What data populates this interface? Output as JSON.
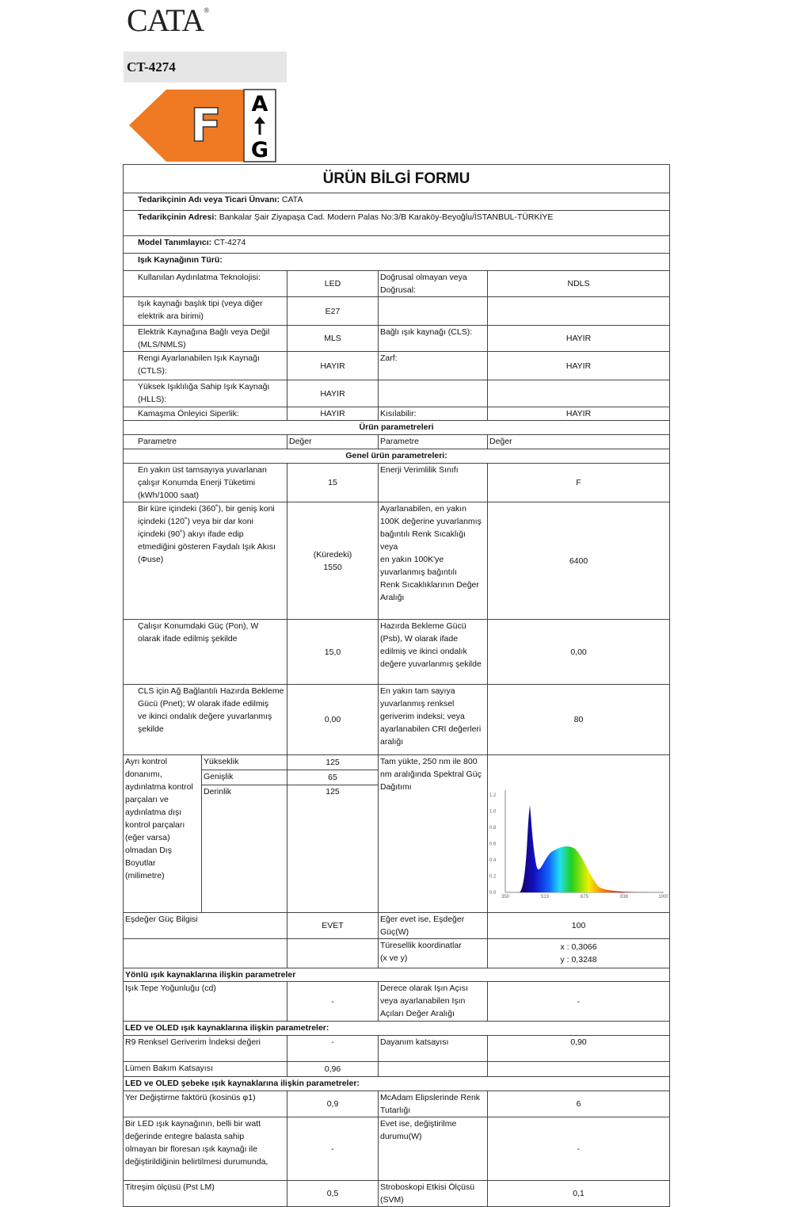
{
  "brand": {
    "logo": "CATA",
    "registered": "®"
  },
  "model_banner": "CT-4274",
  "energy_label": {
    "class": "F",
    "scale_top": "A",
    "scale_bottom": "G",
    "arrow": "arrow-up-icon",
    "color": "#f07a24"
  },
  "form": {
    "title": "ÜRÜN BİLGİ FORMU",
    "supplier_label": "Tedarikçinin Adı veya Ticari Ünvanı:",
    "supplier": "CATA",
    "address_label": "Tedarikçinin Adresi:",
    "address": "Bankalar Şair Ziyapaşa Cad. Modern Palas No:3/B Karaköy-Beyoğlu/İSTANBUL-TÜRKİYE",
    "model_label": "Model Tanımlayıcı:",
    "model": "CT-4274",
    "source_type": "Işık Kaynağının Türü:",
    "tech_label": "Kullanılan Aydınlatma Teknolojisi:",
    "tech": "LED",
    "directional_label": "Doğrusal olmayan veya\nDoğrusal:",
    "directional": "NDLS",
    "cap_label": "Işık kaynağı başlık tipi (veya diğer\nelektrik ara birimi)",
    "cap": "E27",
    "mains_label": "Elektrik Kaynağına Bağlı veya Değil\n(MLS/NMLS)",
    "mains": "MLS",
    "cls_label": "Bağlı ışık kaynağı (CLS):",
    "cls": "HAYIR",
    "ctls_label": "Rengi Ayarlanabilen Işık Kaynağı\n(CTLS):",
    "ctls": "HAYIR",
    "envelope_label": "Zarf:",
    "envelope": "HAYIR",
    "hlls_label": "Yüksek Işıklılığa Sahip Işık Kaynağı\n(HLLS):",
    "hlls": "HAYIR",
    "glare_label": "Kamaşma Önleyici Siperlik:",
    "glare": "HAYIR",
    "dimmable_label": "Kısılabilir:",
    "dimmable": "HAYIR",
    "product_params": "Ürün parametreleri",
    "col_param": "Parametre",
    "col_value": "Değer",
    "general_params": "Genel ürün parametreleri:",
    "energy_cons_label": "En yakın üst tamsayıya yuvarlanan\nçalışır Konumda Enerji Tüketimi\n(kWh/1000 saat)",
    "energy_cons": "15",
    "eff_class_label": "Enerji Verimlilik Sınıfı",
    "eff_class": "F",
    "flux_label": "Bir küre içindeki (360˚), bir geniş koni\niçindeki (120˚) veya bir dar koni\niçindeki (90˚) akıyı ifade edip\netmediğini gösteren Faydalı Işık Akısı\n(Φuse)",
    "flux": "(Küredeki)\n1550",
    "cct_label": "Ayarlanabilen, en yakın\n100K değerine yuvarlanmış\nbağıntılı Renk Sıcaklığı veya\nen yakın 100K'ye\nyuvarlanmış bağıntılı\nRenk Sıcaklıklarının Değer\nAralığı",
    "cct": "6400",
    "pon_label": "Çalışır Konumdaki Güç (Pon), W\nolarak ifade edilmiş şekilde",
    "pon": "15,0",
    "psb_label": "Hazırda Bekleme Gücü\n(Psb), W olarak ifade\nedilmiş ve ikinci ondalık\ndeğere yuvarlanmış şekilde",
    "psb": "0,00",
    "pnet_label": "CLS için Ağ Bağlantılı Hazırda Bekleme\nGücü (Pnet); W olarak ifade edilmiş\nve ikinci ondalık değere yuvarlanmış\nşekilde",
    "pnet": "0,00",
    "cri_label": "En yakın tam sayıya\nyuvarlanmış renksel\ngeriverim indeksi; veya\nayarlanabilen CRI değerleri\naralığı",
    "cri": "80",
    "dims_label": "Ayrı kontrol\ndonanımı,\naydınlatma kontrol\nparçaları ve\naydınlatma  dışı\nkontrol parçaları\n(eğer varsa)\nolmadan Dış\nBoyutlar\n(milimetre)",
    "height_label": "Yükseklik",
    "height": "125",
    "width_label": "Genişlik",
    "width": "65",
    "depth_label": "Derinlik",
    "depth": "125",
    "spd_label": "Tam yükte, 250 nm ile 800\nnm aralığında Spektral Güç\nDağıtımı",
    "spectrum": {
      "x_ticks": [
        "350",
        "513",
        "675",
        "838",
        "1000"
      ],
      "y_ticks": [
        "0.0",
        "0.2",
        "0.4",
        "0.6",
        "0.8",
        "1.0",
        "1.2"
      ]
    },
    "equiv_label": "Eşdeğer Güç Bilgisi",
    "equiv": "EVET",
    "equiv_power_label": "Eğer evet ise, Eşdeğer\nGüç(W)",
    "equiv_power": "100",
    "chroma_label": "Türesellik koordinatlar\n(x ve y)",
    "chroma": "x : 0,3066\ny : 0,3248",
    "directional_params": "Yönlü ışık kaynaklarına ilişkin parametreler",
    "peak_label": "Işık Tepe Yoğunluğu (cd)",
    "peak": "-",
    "beam_label": "Derece olarak Işın Açısı\nveya ayarlanabilen Işın\nAçıları Değer Aralığı",
    "beam": "-",
    "led_params": "LED ve OLED ışık kaynaklarına ilişkin parametreler:",
    "r9_label": "R9 Renksel Geriverim İndeksi değeri",
    "r9": "-",
    "survival_label": "Dayanım katsayısı",
    "survival": "0,90",
    "lumen_label": "Lümen Bakım Katsayısı",
    "lumen": "0,96",
    "led_mains_params": "LED ve OLED şebeke ışık kaynaklarına ilişkin parametreler:",
    "pf_label": "Yer Değiştirme faktörü (kosinüs φ1)",
    "pf": "0,9",
    "mcadam_label": "McAdam Elipslerinde Renk\nTutarlığı",
    "mcadam": "6",
    "retrofit_label": "Bir LED ışık kaynağının, belli bir watt\ndeğerinde entegre balasta sahip\nolmayan bir floresan ışık kaynağı ile\ndeğiştirildiğinin belirtilmesi durumunda,",
    "retrofit": "-",
    "retrofit_w_label": "Evet ise, değiştirilme\ndurumu(W)",
    "retrofit_w": "-",
    "flicker_label": "Titreşim ölçüsü (Pst LM)",
    "flicker": "0,5",
    "strobo_label": "Stroboskopi Etkisi Ölçüsü\n(SVM)",
    "strobo": "0,1"
  }
}
